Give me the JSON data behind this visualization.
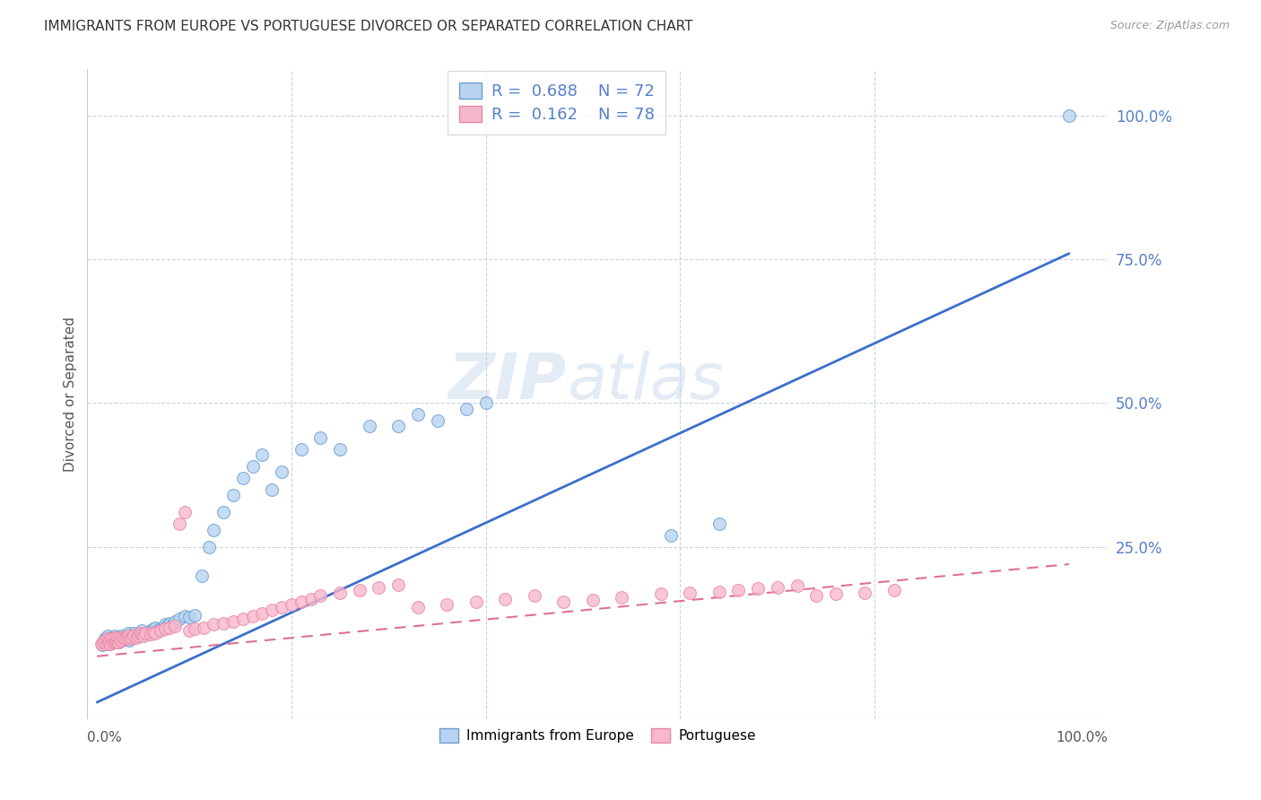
{
  "title": "IMMIGRANTS FROM EUROPE VS PORTUGUESE DIVORCED OR SEPARATED CORRELATION CHART",
  "source": "Source: ZipAtlas.com",
  "ylabel": "Divorced or Separated",
  "legend_entries": [
    {
      "label": "Immigrants from Europe",
      "R": "0.688",
      "N": "72"
    },
    {
      "label": "Portuguese",
      "R": "0.162",
      "N": "78"
    }
  ],
  "blue_line": {
    "x0": 0.0,
    "y0": -0.02,
    "x1": 1.0,
    "y1": 0.76,
    "color": "#3c6fcc",
    "lw": 2.0
  },
  "pink_line": {
    "x0": 0.0,
    "y0": 0.06,
    "x1": 1.0,
    "y1": 0.22,
    "color": "#e07090",
    "lw": 1.5
  },
  "blue_scatter_x": [
    0.005,
    0.007,
    0.008,
    0.009,
    0.01,
    0.011,
    0.012,
    0.013,
    0.014,
    0.015,
    0.016,
    0.017,
    0.018,
    0.019,
    0.02,
    0.021,
    0.022,
    0.023,
    0.025,
    0.026,
    0.027,
    0.028,
    0.03,
    0.032,
    0.033,
    0.035,
    0.037,
    0.038,
    0.04,
    0.042,
    0.044,
    0.046,
    0.048,
    0.05,
    0.052,
    0.055,
    0.058,
    0.06,
    0.063,
    0.065,
    0.068,
    0.07,
    0.072,
    0.075,
    0.078,
    0.08,
    0.085,
    0.09,
    0.095,
    0.1,
    0.108,
    0.115,
    0.12,
    0.13,
    0.14,
    0.15,
    0.16,
    0.17,
    0.18,
    0.19,
    0.21,
    0.23,
    0.25,
    0.28,
    0.31,
    0.33,
    0.35,
    0.38,
    0.4,
    0.59,
    0.64,
    1.0
  ],
  "blue_scatter_y": [
    0.08,
    0.085,
    0.09,
    0.088,
    0.092,
    0.095,
    0.082,
    0.088,
    0.09,
    0.085,
    0.092,
    0.088,
    0.095,
    0.09,
    0.088,
    0.092,
    0.085,
    0.09,
    0.095,
    0.088,
    0.092,
    0.09,
    0.095,
    0.1,
    0.088,
    0.092,
    0.095,
    0.1,
    0.095,
    0.098,
    0.1,
    0.105,
    0.098,
    0.1,
    0.102,
    0.105,
    0.108,
    0.11,
    0.105,
    0.108,
    0.11,
    0.115,
    0.112,
    0.118,
    0.115,
    0.12,
    0.125,
    0.13,
    0.128,
    0.132,
    0.2,
    0.25,
    0.28,
    0.31,
    0.34,
    0.37,
    0.39,
    0.41,
    0.35,
    0.38,
    0.42,
    0.44,
    0.42,
    0.46,
    0.46,
    0.48,
    0.47,
    0.49,
    0.5,
    0.27,
    0.29,
    1.0
  ],
  "pink_scatter_x": [
    0.004,
    0.006,
    0.008,
    0.01,
    0.011,
    0.012,
    0.013,
    0.014,
    0.015,
    0.016,
    0.017,
    0.018,
    0.019,
    0.02,
    0.021,
    0.022,
    0.023,
    0.025,
    0.027,
    0.028,
    0.03,
    0.032,
    0.034,
    0.036,
    0.038,
    0.04,
    0.042,
    0.044,
    0.046,
    0.048,
    0.05,
    0.055,
    0.058,
    0.06,
    0.065,
    0.07,
    0.075,
    0.08,
    0.085,
    0.09,
    0.095,
    0.1,
    0.11,
    0.12,
    0.13,
    0.14,
    0.15,
    0.16,
    0.17,
    0.18,
    0.19,
    0.2,
    0.21,
    0.22,
    0.23,
    0.25,
    0.27,
    0.29,
    0.31,
    0.33,
    0.36,
    0.39,
    0.42,
    0.45,
    0.48,
    0.51,
    0.54,
    0.58,
    0.61,
    0.64,
    0.66,
    0.68,
    0.7,
    0.72,
    0.74,
    0.76,
    0.79,
    0.82
  ],
  "pink_scatter_y": [
    0.082,
    0.085,
    0.088,
    0.082,
    0.09,
    0.085,
    0.088,
    0.082,
    0.09,
    0.085,
    0.088,
    0.092,
    0.085,
    0.088,
    0.092,
    0.085,
    0.09,
    0.088,
    0.092,
    0.09,
    0.092,
    0.095,
    0.09,
    0.092,
    0.095,
    0.092,
    0.095,
    0.1,
    0.098,
    0.095,
    0.1,
    0.098,
    0.102,
    0.1,
    0.105,
    0.108,
    0.11,
    0.112,
    0.29,
    0.31,
    0.105,
    0.108,
    0.11,
    0.115,
    0.118,
    0.12,
    0.125,
    0.13,
    0.135,
    0.14,
    0.145,
    0.15,
    0.155,
    0.16,
    0.165,
    0.17,
    0.175,
    0.18,
    0.185,
    0.145,
    0.15,
    0.155,
    0.16,
    0.165,
    0.155,
    0.158,
    0.162,
    0.168,
    0.17,
    0.172,
    0.175,
    0.178,
    0.18,
    0.182,
    0.165,
    0.168,
    0.17,
    0.175
  ],
  "watermark_top": "ZIP",
  "watermark_bottom": "atlas",
  "background_color": "#ffffff",
  "grid_color": "#c8d4e8",
  "title_fontsize": 11,
  "scatter_size": 100,
  "blue_face": "#b8d4f0",
  "blue_edge": "#6a9fd0",
  "pink_face": "#f8b8cc",
  "pink_edge": "#e888a8",
  "ytick_color": "#5580cc",
  "xlim": [
    -0.01,
    1.04
  ],
  "ylim": [
    -0.05,
    1.08
  ]
}
